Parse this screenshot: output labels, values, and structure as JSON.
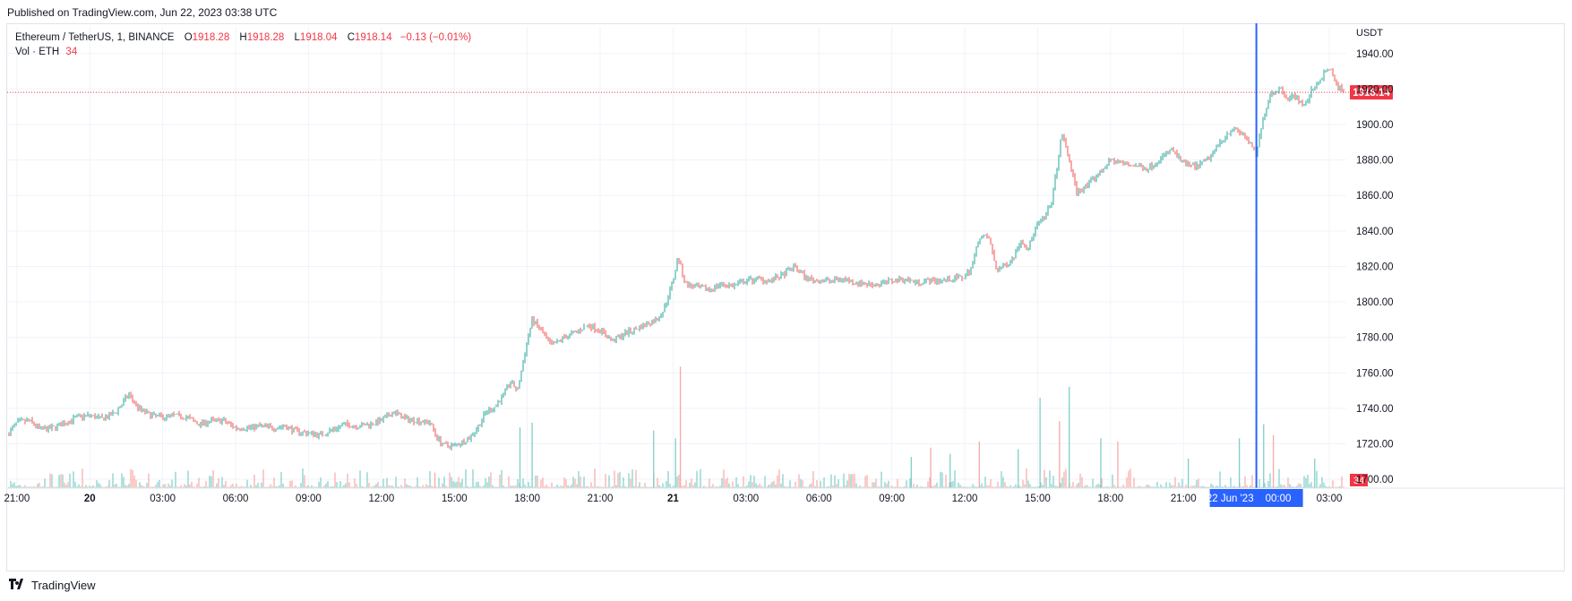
{
  "published": "Published on TradingView.com, Jun 22, 2023 03:38 UTC",
  "legend": {
    "symbol": "Ethereum / TetherUS, 1, BINANCE",
    "open_label": "O",
    "open": "1918.28",
    "high_label": "H",
    "high": "1918.28",
    "low_label": "L",
    "low": "1918.04",
    "close_label": "C",
    "close": "1918.14",
    "change": "−0.13 (−0.01%)",
    "vol_label": "Vol · ETH",
    "vol_value": "34"
  },
  "footer": {
    "brand": "TradingView",
    "logo_icon": "tradingview-logo-icon"
  },
  "colors": {
    "up": "#26a69a",
    "down": "#ef5350",
    "crosshair": "#2962ff",
    "price_line": "#f23645",
    "grid": "#f0f3fa"
  },
  "chart_data": {
    "type": "line",
    "title": "Ethereum / TetherUS, 1, BINANCE",
    "currency_label": "USDT",
    "ylim": [
      1695,
      1950
    ],
    "y_ticks": [
      "1940.00",
      "1920.00",
      "1900.00",
      "1880.00",
      "1860.00",
      "1840.00",
      "1820.00",
      "1800.00",
      "1780.00",
      "1760.00",
      "1740.00",
      "1720.00",
      "1700.00"
    ],
    "x_ticks": [
      "21:00",
      "20",
      "03:00",
      "06:00",
      "09:00",
      "12:00",
      "15:00",
      "18:00",
      "21:00",
      "21",
      "03:00",
      "06:00",
      "09:00",
      "12:00",
      "15:00",
      "18:00",
      "21:00",
      "00:00",
      "03:00"
    ],
    "x_tick_hours": [
      -3,
      0,
      3,
      6,
      9,
      12,
      15,
      18,
      21,
      24,
      27,
      30,
      33,
      36,
      39,
      42,
      45,
      48,
      51
    ],
    "xlim_hours": [
      -3.4,
      51.7
    ],
    "last_price": "1918.14",
    "last_volume": "34",
    "crosshair_date": "22 Jun '23",
    "crosshair_time": "00:00",
    "crosshair_hour": 48,
    "series": [
      {
        "x_hours": [
          -3.4,
          -3,
          -2.5,
          -2,
          -1.5,
          -1,
          -0.5,
          0,
          0.5,
          1,
          1.3,
          1.6,
          2,
          2.5,
          3,
          3.5,
          4,
          4.5,
          5,
          5.5,
          6,
          6.5,
          7,
          7.5,
          8,
          8.5,
          9,
          9.5,
          10,
          10.5,
          11,
          11.5,
          12,
          12.5,
          13,
          13.5,
          14,
          14.3,
          14.6,
          15,
          15.3,
          15.6,
          16,
          16.3,
          16.6,
          17,
          17.3,
          17.6,
          18,
          18.2,
          18.5,
          19,
          19.5,
          20,
          20.5,
          21,
          21.5,
          22,
          22.5,
          23,
          23.3,
          23.6,
          24,
          24.2,
          24.5,
          25,
          25.5,
          26,
          26.5,
          27,
          27.5,
          28,
          28.5,
          29,
          29.5,
          30,
          30.5,
          31,
          31.5,
          32,
          32.5,
          33,
          33.5,
          34,
          34.5,
          35,
          35.5,
          36,
          36.3,
          36.6,
          37,
          37.3,
          37.6,
          38,
          38.3,
          38.6,
          39,
          39.3,
          39.6,
          40,
          40.3,
          40.6,
          41,
          41.5,
          42,
          42.5,
          43,
          43.5,
          44,
          44.5,
          45,
          45.5,
          46,
          46.5,
          47,
          47.5,
          48,
          48.3,
          48.6,
          49,
          49.3,
          49.6,
          50,
          50.3,
          50.6,
          51,
          51.3,
          51.6
        ],
        "y": [
          1725,
          1732,
          1733,
          1728,
          1729,
          1732,
          1735,
          1736,
          1734,
          1737,
          1742,
          1748,
          1740,
          1736,
          1735,
          1736,
          1735,
          1731,
          1733,
          1733,
          1729,
          1729,
          1730,
          1729,
          1730,
          1727,
          1726,
          1725,
          1728,
          1731,
          1730,
          1731,
          1733,
          1738,
          1734,
          1733,
          1732,
          1723,
          1719,
          1719,
          1721,
          1723,
          1730,
          1738,
          1740,
          1747,
          1755,
          1750,
          1778,
          1790,
          1785,
          1775,
          1780,
          1783,
          1787,
          1784,
          1778,
          1782,
          1785,
          1788,
          1790,
          1795,
          1812,
          1826,
          1810,
          1808,
          1807,
          1810,
          1809,
          1812,
          1813,
          1812,
          1815,
          1820,
          1813,
          1812,
          1812,
          1813,
          1811,
          1810,
          1810,
          1812,
          1813,
          1811,
          1812,
          1812,
          1813,
          1814,
          1820,
          1837,
          1836,
          1818,
          1820,
          1825,
          1835,
          1830,
          1844,
          1847,
          1858,
          1895,
          1880,
          1862,
          1865,
          1872,
          1880,
          1878,
          1877,
          1875,
          1880,
          1886,
          1878,
          1876,
          1880,
          1890,
          1898,
          1894,
          1883,
          1905,
          1918,
          1920,
          1915,
          1916,
          1910,
          1920,
          1925,
          1932,
          1922,
          1918
        ]
      }
    ],
    "volume_ylim": [
      0,
      460
    ],
    "volume_spikes": [
      {
        "hour": 14.2,
        "value": 50
      },
      {
        "hour": 17.7,
        "value": 195
      },
      {
        "hour": 18.2,
        "value": 210
      },
      {
        "hour": 24.3,
        "value": 390
      },
      {
        "hour": 24.1,
        "value": 160
      },
      {
        "hour": 23.2,
        "value": 185
      },
      {
        "hour": 36.6,
        "value": 150
      },
      {
        "hour": 38.2,
        "value": 125
      },
      {
        "hour": 39.1,
        "value": 290
      },
      {
        "hour": 39.9,
        "value": 215
      },
      {
        "hour": 40.3,
        "value": 325
      },
      {
        "hour": 41.6,
        "value": 160
      },
      {
        "hour": 42.3,
        "value": 150
      },
      {
        "hour": 47.3,
        "value": 160
      },
      {
        "hour": 48.3,
        "value": 205
      },
      {
        "hour": 48.7,
        "value": 170
      },
      {
        "hour": 50.4,
        "value": 95
      },
      {
        "hour": 35.4,
        "value": 110
      },
      {
        "hour": 34.6,
        "value": 130
      },
      {
        "hour": 33.8,
        "value": 100
      },
      {
        "hour": 45.2,
        "value": 95
      }
    ]
  }
}
